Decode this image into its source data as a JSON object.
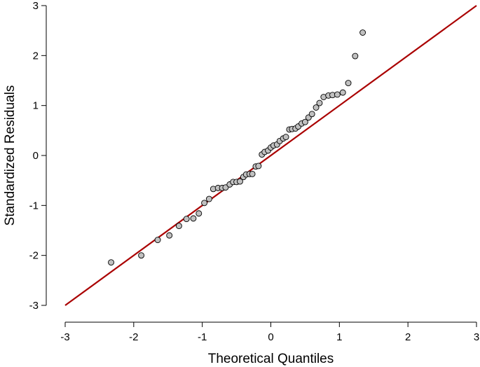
{
  "chart_data": {
    "type": "scatter",
    "subtype": "qq-plot",
    "title": "",
    "xlabel": "Theoretical Quantiles",
    "ylabel": "Standardized Residuals",
    "xlim": [
      -3,
      3
    ],
    "ylim": [
      -3,
      3
    ],
    "x_ticks": [
      "-3",
      "-2",
      "-1",
      "0",
      "1",
      "2",
      "3"
    ],
    "y_ticks": [
      "-3",
      "-2",
      "-1",
      "0",
      "1",
      "2",
      "3"
    ],
    "grid": false,
    "legend": "none",
    "reference_line": {
      "from": [
        -3,
        -3
      ],
      "to": [
        3,
        3
      ],
      "color": "#aa0000"
    },
    "point_color": "#c0c0c0",
    "point_stroke": "#000000",
    "points": [
      {
        "x": -2.33,
        "y": -2.14
      },
      {
        "x": -1.89,
        "y": -2.0
      },
      {
        "x": -1.65,
        "y": -1.69
      },
      {
        "x": -1.48,
        "y": -1.6
      },
      {
        "x": -1.34,
        "y": -1.41
      },
      {
        "x": -1.23,
        "y": -1.27
      },
      {
        "x": -1.13,
        "y": -1.26
      },
      {
        "x": -1.05,
        "y": -1.16
      },
      {
        "x": -0.97,
        "y": -0.95
      },
      {
        "x": -0.9,
        "y": -0.87
      },
      {
        "x": -0.84,
        "y": -0.67
      },
      {
        "x": -0.77,
        "y": -0.65
      },
      {
        "x": -0.71,
        "y": -0.65
      },
      {
        "x": -0.66,
        "y": -0.64
      },
      {
        "x": -0.6,
        "y": -0.58
      },
      {
        "x": -0.55,
        "y": -0.53
      },
      {
        "x": -0.5,
        "y": -0.53
      },
      {
        "x": -0.45,
        "y": -0.52
      },
      {
        "x": -0.4,
        "y": -0.43
      },
      {
        "x": -0.36,
        "y": -0.38
      },
      {
        "x": -0.31,
        "y": -0.37
      },
      {
        "x": -0.27,
        "y": -0.37
      },
      {
        "x": -0.22,
        "y": -0.22
      },
      {
        "x": -0.18,
        "y": -0.21
      },
      {
        "x": -0.13,
        "y": 0.02
      },
      {
        "x": -0.09,
        "y": 0.07
      },
      {
        "x": -0.04,
        "y": 0.1
      },
      {
        "x": 0.0,
        "y": 0.16
      },
      {
        "x": 0.04,
        "y": 0.2
      },
      {
        "x": 0.09,
        "y": 0.22
      },
      {
        "x": 0.13,
        "y": 0.29
      },
      {
        "x": 0.18,
        "y": 0.34
      },
      {
        "x": 0.22,
        "y": 0.37
      },
      {
        "x": 0.27,
        "y": 0.52
      },
      {
        "x": 0.31,
        "y": 0.53
      },
      {
        "x": 0.36,
        "y": 0.54
      },
      {
        "x": 0.4,
        "y": 0.58
      },
      {
        "x": 0.45,
        "y": 0.64
      },
      {
        "x": 0.5,
        "y": 0.67
      },
      {
        "x": 0.55,
        "y": 0.76
      },
      {
        "x": 0.6,
        "y": 0.83
      },
      {
        "x": 0.66,
        "y": 0.96
      },
      {
        "x": 0.71,
        "y": 1.05
      },
      {
        "x": 0.77,
        "y": 1.17
      },
      {
        "x": 0.84,
        "y": 1.2
      },
      {
        "x": 0.9,
        "y": 1.21
      },
      {
        "x": 0.97,
        "y": 1.22
      },
      {
        "x": 1.05,
        "y": 1.26
      },
      {
        "x": 1.13,
        "y": 1.45
      },
      {
        "x": 1.23,
        "y": 1.99
      },
      {
        "x": 1.34,
        "y": 2.46
      }
    ]
  }
}
